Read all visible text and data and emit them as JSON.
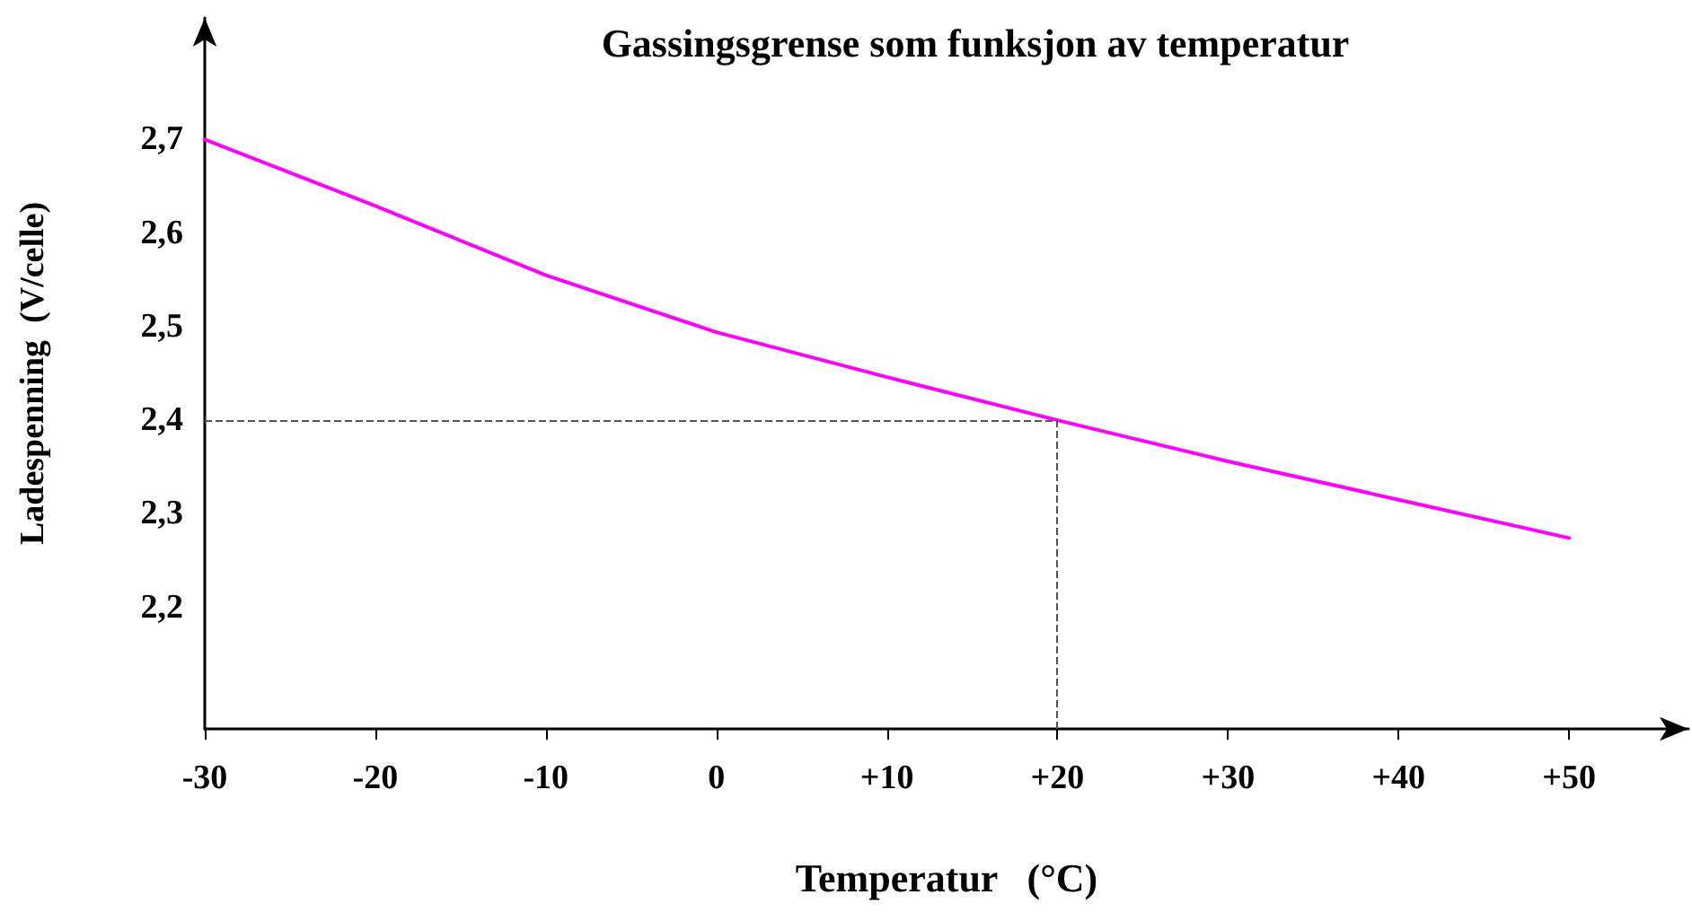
{
  "chart_data": {
    "type": "line",
    "title": "Gassingsgrense som funksjon av temperatur",
    "xlabel": "Temperatur   (°C)",
    "ylabel": "Ladespenning  (V/celle)",
    "x": [
      -30,
      -20,
      -10,
      0,
      10,
      20,
      30,
      40,
      50
    ],
    "series": [
      {
        "color": "#ff00ff",
        "values": [
          2.7,
          2.629,
          2.555,
          2.494,
          2.446,
          2.4,
          2.356,
          2.315,
          2.274
        ]
      }
    ],
    "xlim": [
      -30,
      57
    ],
    "ylim": [
      2.07,
      2.83
    ],
    "xticks": [
      -30,
      -20,
      -10,
      0,
      {
        "value": 10,
        "label": "+10"
      },
      {
        "value": 20,
        "label": "+20"
      },
      {
        "value": 30,
        "label": "+30"
      },
      {
        "value": 40,
        "label": "+40"
      },
      {
        "value": 50,
        "label": "+50"
      }
    ],
    "yticks": [
      {
        "value": 2.2,
        "label": "2,2"
      },
      {
        "value": 2.3,
        "label": "2,3"
      },
      {
        "value": 2.4,
        "label": "2,4"
      },
      {
        "value": 2.5,
        "label": "2,5"
      },
      {
        "value": 2.6,
        "label": "2,6"
      },
      {
        "value": 2.7,
        "label": "2,7"
      }
    ],
    "ref_lines": [
      {
        "axis": "y",
        "value": 2.4,
        "color": "#555555",
        "line_style": "dashed"
      },
      {
        "axis": "x",
        "value": 20,
        "color": "#555555",
        "line_style": "dashed"
      }
    ],
    "grid": false,
    "marker": "none",
    "line_style": "solid"
  }
}
